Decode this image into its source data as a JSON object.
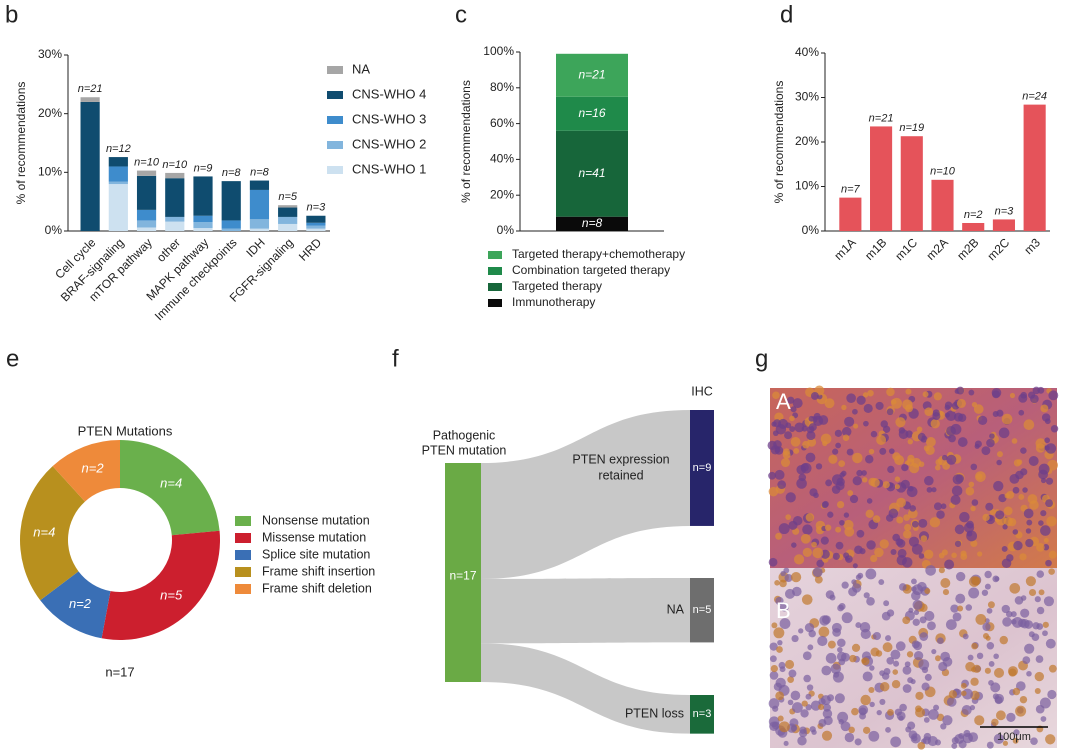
{
  "chart_data": [
    {
      "panel_label": "b",
      "type": "bar",
      "stacked": true,
      "y_label": "% of recommendations",
      "categories": [
        "Cell cycle",
        "BRAF-signaling",
        "mTOR pathway",
        "other",
        "MAPK pathway",
        "Immune checkpoints",
        "IDH",
        "FGFR-signaling",
        "HRD"
      ],
      "count_labels": [
        "n=21",
        "n=12",
        "n=10",
        "n=10",
        "n=9",
        "n=8",
        "n=8",
        "n=5",
        "n=3"
      ],
      "series": [
        {
          "name": "NA",
          "color": "#a6a6a6",
          "values": [
            0.8,
            0,
            0.9,
            0.9,
            0,
            0,
            0,
            0.4,
            0
          ]
        },
        {
          "name": "CNS-WHO 4",
          "color": "#0f4c6f",
          "values": [
            22,
            1.6,
            5.8,
            6.6,
            6.7,
            6.7,
            1.6,
            1.6,
            1.2
          ]
        },
        {
          "name": "CNS-WHO 3",
          "color": "#3e8ccc",
          "values": [
            0,
            2.6,
            1.8,
            0,
            1.1,
            1.4,
            5.0,
            0,
            0.5
          ]
        },
        {
          "name": "CNS-WHO 2",
          "color": "#82b5dd",
          "values": [
            0,
            0.4,
            1.2,
            0.8,
            1.0,
            0.4,
            1.6,
            1.2,
            0.5
          ]
        },
        {
          "name": "CNS-WHO 1",
          "color": "#cde1f0",
          "values": [
            0,
            8,
            0.6,
            1.6,
            0.5,
            0,
            0.4,
            1.2,
            0.4
          ]
        }
      ],
      "ylim": [
        0,
        30
      ],
      "yticks": [
        {
          "value": 0,
          "label": "0%"
        },
        {
          "value": 10,
          "label": "10%"
        },
        {
          "value": 20,
          "label": "20%"
        },
        {
          "value": 30,
          "label": "30%"
        }
      ]
    },
    {
      "panel_label": "c",
      "type": "bar",
      "stacked": true,
      "y_label": "% of recommendations",
      "categories": [
        null
      ],
      "series": [
        {
          "name": "Targeted therapy+chemotherapy",
          "color": "#3da55a",
          "values": [
            24
          ],
          "count_labels": [
            "n=21"
          ]
        },
        {
          "name": "Combination targeted therapy",
          "color": "#1f8a4a",
          "values": [
            19
          ],
          "count_labels": [
            "n=16"
          ]
        },
        {
          "name": "Targeted therapy",
          "color": "#17663a",
          "values": [
            48
          ],
          "count_labels": [
            "n=41"
          ]
        },
        {
          "name": "Immunotherapy",
          "color": "#0a0a0a",
          "values": [
            8
          ],
          "count_labels": [
            "n=8"
          ]
        }
      ],
      "ylim": [
        0,
        100
      ],
      "yticks": [
        {
          "value": 0,
          "label": "0%"
        },
        {
          "value": 20,
          "label": "20%"
        },
        {
          "value": 40,
          "label": "40%"
        },
        {
          "value": 60,
          "label": "60%"
        },
        {
          "value": 80,
          "label": "80%"
        },
        {
          "value": 100,
          "label": "100%"
        }
      ]
    },
    {
      "panel_label": "d",
      "type": "bar",
      "y_label": "% of recommendations",
      "categories": [
        "m1A",
        "m1B",
        "m1C",
        "m2A",
        "m2B",
        "m2C",
        "m3"
      ],
      "values": [
        7.5,
        23.5,
        21.3,
        11.5,
        1.8,
        2.6,
        28.4
      ],
      "count_labels": [
        "n=7",
        "n=21",
        "n=19",
        "n=10",
        "n=2",
        "n=3",
        "n=24"
      ],
      "color": "#e5535a",
      "ylim": [
        0,
        40
      ],
      "yticks": [
        {
          "value": 0,
          "label": "0%"
        },
        {
          "value": 10,
          "label": "10%"
        },
        {
          "value": 20,
          "label": "20%"
        },
        {
          "value": 30,
          "label": "30%"
        },
        {
          "value": 40,
          "label": "40%"
        }
      ]
    },
    {
      "panel_label": "e",
      "type": "donut",
      "title": "PTEN Mutations",
      "total_label": "n=17",
      "categories": [
        "Nonsense mutation",
        "Missense mutation",
        "Splice site mutation",
        "Frame shift insertion",
        "Frame shift deletion"
      ],
      "values": [
        4,
        5,
        2,
        4,
        2
      ],
      "value_labels": [
        "n=4",
        "n=5",
        "n=2",
        "n=4",
        "n=2"
      ],
      "colors": [
        "#6ab04c",
        "#cc1f2e",
        "#3a6fb5",
        "#b8901e",
        "#ee8a3a"
      ]
    },
    {
      "panel_label": "f",
      "type": "sankey",
      "source": {
        "label": [
          "Pathogenic",
          "PTEN mutation"
        ],
        "value": 17,
        "value_label": "n=17",
        "color": "#6aaa45"
      },
      "target_header": "IHC",
      "targets": [
        {
          "label": [
            "PTEN expression",
            "retained"
          ],
          "value": 9,
          "value_label": "n=9",
          "color": "#27256a"
        },
        {
          "label": [
            "NA"
          ],
          "value": 5,
          "value_label": "n=5",
          "color": "#6e6e6e"
        },
        {
          "label": [
            "PTEN loss"
          ],
          "value": 3,
          "value_label": "n=3",
          "color": "#1a6a3a"
        }
      ],
      "flow_color": "#c8c8c8"
    }
  ],
  "image_panel": {
    "panel_label": "g",
    "insets": [
      "A",
      "B"
    ],
    "scale_bar": "100μm"
  }
}
